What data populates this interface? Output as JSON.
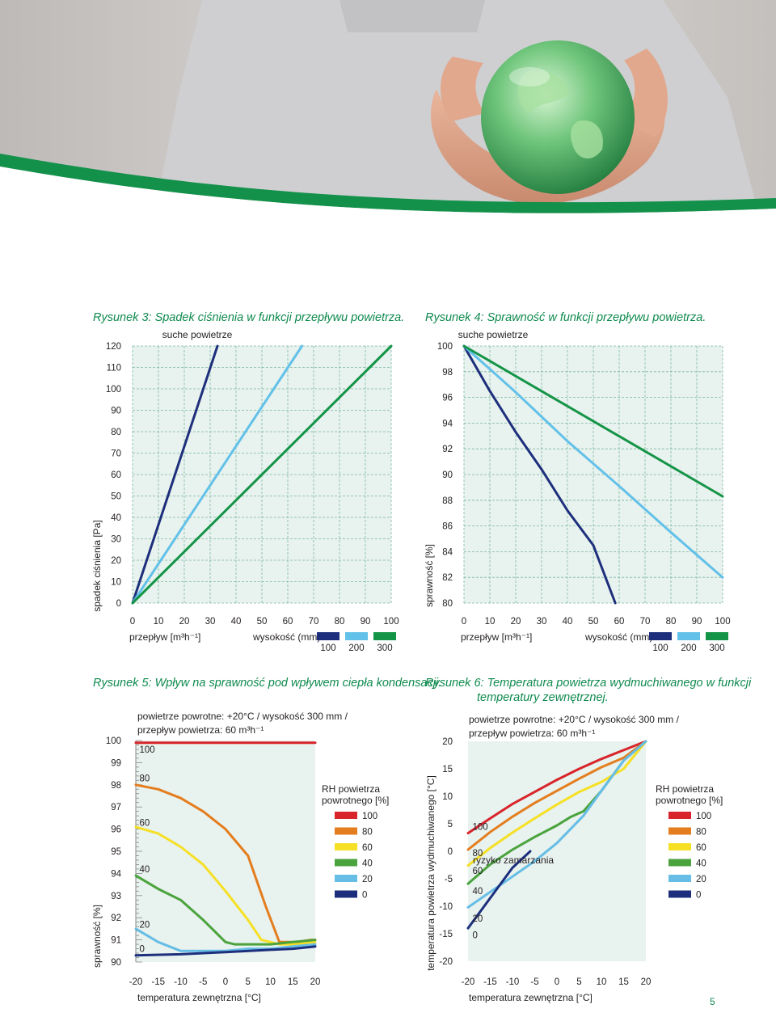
{
  "page_number": "5",
  "legend_colors": {
    "h100": "#1d2f7c",
    "h200": "#62c1e9",
    "h300": "#149447",
    "rh100": "#d8242b",
    "rh80": "#e47d1e",
    "rh60": "#f6e025",
    "rh40": "#4aa33c",
    "rh20": "#66bde6",
    "rh0": "#1d2f7c"
  },
  "chart_data": [
    {
      "id": "fig3",
      "type": "line",
      "title": "Rysunek 3: Spadek ciśnienia w funkcji przepływu powietrza.",
      "subtitle": "suche powietrze",
      "xlabel": "przepływ [m³h⁻¹]",
      "ylabel": "spadek ciśnienia [Pa]",
      "xlim": [
        0,
        100
      ],
      "ylim": [
        0,
        120
      ],
      "xticks": [
        "0",
        "10",
        "20",
        "30",
        "40",
        "50",
        "60",
        "70",
        "80",
        "90",
        "100"
      ],
      "yticks": [
        "0",
        "10",
        "20",
        "30",
        "40",
        "50",
        "60",
        "70",
        "80",
        "90",
        "100",
        "110",
        "120"
      ],
      "grid": true,
      "legend_title": "wysokość (mm)",
      "legend_position": "bottom",
      "series": [
        {
          "name": "100",
          "color": "#1d2f7c",
          "x": [
            0,
            32.8
          ],
          "y": [
            0,
            120
          ]
        },
        {
          "name": "200",
          "color": "#62c1e9",
          "x": [
            0,
            65.5
          ],
          "y": [
            0,
            120
          ]
        },
        {
          "name": "300",
          "color": "#149447",
          "x": [
            0,
            100
          ],
          "y": [
            0,
            120
          ]
        }
      ]
    },
    {
      "id": "fig4",
      "type": "line",
      "title": "Rysunek 4: Sprawność w funkcji przepływu powietrza.",
      "subtitle": "suche powietrze",
      "xlabel": "przepływ [m³h⁻¹]",
      "ylabel": "sprawność [%]",
      "xlim": [
        0,
        100
      ],
      "ylim": [
        80,
        100
      ],
      "xticks": [
        "0",
        "10",
        "20",
        "30",
        "40",
        "50",
        "60",
        "70",
        "80",
        "90",
        "100"
      ],
      "yticks": [
        "80",
        "82",
        "84",
        "86",
        "88",
        "90",
        "92",
        "94",
        "96",
        "98",
        "100"
      ],
      "grid": true,
      "legend_title": "wysokość (mm)",
      "legend_position": "bottom",
      "series": [
        {
          "name": "100",
          "color": "#1d2f7c",
          "x": [
            0,
            10,
            20,
            30,
            40,
            50,
            58.5
          ],
          "y": [
            100,
            96.5,
            93.3,
            90.4,
            87.2,
            84.5,
            80
          ]
        },
        {
          "name": "200",
          "color": "#62c1e9",
          "x": [
            0,
            20,
            40,
            60,
            80,
            100
          ],
          "y": [
            100,
            96.4,
            92.6,
            89.1,
            85.5,
            82
          ]
        },
        {
          "name": "300",
          "color": "#149447",
          "x": [
            0,
            100
          ],
          "y": [
            100,
            88.3
          ]
        }
      ]
    },
    {
      "id": "fig5",
      "type": "line",
      "title": "Rysunek 5: Wpływ na sprawność pod wpływem ciepła kondensacji.",
      "subtitle_lines": [
        "powietrze powrotne: +20°C / wysokość 300 mm /",
        "przepływ powietrza: 60 m³h⁻¹"
      ],
      "xlabel": "temperatura zewnętrzna [°C]",
      "ylabel": "sprawność [%]",
      "xlim": [
        -20,
        20
      ],
      "ylim": [
        90,
        100
      ],
      "xticks": [
        "-20",
        "-15",
        "-10",
        "-5",
        "0",
        "5",
        "10",
        "15",
        "20"
      ],
      "yticks": [
        "90",
        "91",
        "92",
        "93",
        "94",
        "95",
        "96",
        "97",
        "98",
        "99",
        "100"
      ],
      "grid": false,
      "legend_title": "RH powietrza powrotnego [%]",
      "legend_position": "right",
      "series": [
        {
          "name": "100",
          "color": "#d8242b",
          "x": [
            -20,
            20
          ],
          "y": [
            99.9,
            99.9
          ]
        },
        {
          "name": "80",
          "color": "#e47d1e",
          "x": [
            -20,
            -15,
            -10,
            -5,
            0,
            5,
            9,
            12,
            14,
            16,
            19,
            20
          ],
          "y": [
            98.0,
            97.8,
            97.4,
            96.8,
            96.0,
            94.8,
            92.5,
            90.9,
            90.9,
            90.9,
            91.0,
            91.0
          ]
        },
        {
          "name": "60",
          "color": "#f6e025",
          "x": [
            -20,
            -15,
            -10,
            -5,
            0,
            5,
            8,
            12,
            16,
            20
          ],
          "y": [
            96.1,
            95.8,
            95.2,
            94.4,
            93.2,
            91.9,
            91.0,
            90.8,
            90.8,
            90.9
          ]
        },
        {
          "name": "40",
          "color": "#4aa33c",
          "x": [
            -20,
            -15,
            -10,
            -5,
            0,
            2,
            5,
            10,
            15,
            20
          ],
          "y": [
            93.9,
            93.3,
            92.8,
            91.9,
            90.9,
            90.8,
            90.8,
            90.8,
            90.9,
            91.0
          ]
        },
        {
          "name": "20",
          "color": "#66bde6",
          "x": [
            -20,
            -15,
            -10,
            -5,
            0,
            5,
            10,
            15,
            20
          ],
          "y": [
            91.5,
            90.9,
            90.5,
            90.5,
            90.5,
            90.6,
            90.6,
            90.7,
            90.8
          ]
        },
        {
          "name": "0",
          "color": "#1d2f7c",
          "x": [
            -20,
            -10,
            0,
            10,
            15,
            20
          ],
          "y": [
            90.3,
            90.35,
            90.45,
            90.55,
            90.6,
            90.7
          ]
        }
      ],
      "inline_labels": [
        {
          "text": "100",
          "x": -19.2,
          "y": 99.6
        },
        {
          "text": "80",
          "x": -19.2,
          "y": 98.3
        },
        {
          "text": "60",
          "x": -19.2,
          "y": 96.3
        },
        {
          "text": "40",
          "x": -19.2,
          "y": 94.2
        },
        {
          "text": "20",
          "x": -19.2,
          "y": 91.7
        },
        {
          "text": "0",
          "x": -19.2,
          "y": 90.6
        }
      ]
    },
    {
      "id": "fig6",
      "type": "line",
      "title": "Rysunek 6: Temperatura powietrza wydmuchiwanego w funkcji",
      "title_line2": "temperatury zewnętrznej.",
      "subtitle_lines": [
        "powietrze powrotne: +20°C / wysokość 300 mm /",
        "przepływ powietrza: 60 m³h⁻¹"
      ],
      "xlabel": "temperatura zewnętrzna [°C]",
      "ylabel": "temperatura powietrza wydmuchiwanego [°C]",
      "xlim": [
        -20,
        20
      ],
      "ylim": [
        -20,
        20
      ],
      "xticks": [
        "-20",
        "-15",
        "-10",
        "-5",
        "0",
        "5",
        "10",
        "15",
        "20"
      ],
      "yticks": [
        "-20",
        "-15",
        "-10",
        "-5",
        "0",
        "5",
        "10",
        "15",
        "20"
      ],
      "grid": false,
      "legend_title": "RH powietrza powrotnego [%]",
      "legend_position": "right",
      "annotation": "ryzyko zamarzania",
      "series": [
        {
          "name": "100",
          "color": "#d8242b",
          "x": [
            -20,
            -15,
            -10,
            -5,
            0,
            5,
            10,
            15,
            20
          ],
          "y": [
            3.3,
            6.0,
            8.6,
            10.8,
            13.0,
            15.0,
            16.8,
            18.4,
            20
          ]
        },
        {
          "name": "80",
          "color": "#e47d1e",
          "x": [
            -20,
            -15,
            -10,
            -5,
            0,
            5,
            10,
            15,
            20
          ],
          "y": [
            0.3,
            3.5,
            6.3,
            8.8,
            11.0,
            13.2,
            15.3,
            17.0,
            20
          ]
        },
        {
          "name": "60",
          "color": "#f6e025",
          "x": [
            -20,
            -15,
            -10,
            -5,
            0,
            5,
            10,
            15,
            20
          ],
          "y": [
            -2.6,
            0.6,
            3.4,
            6.0,
            8.5,
            10.8,
            12.6,
            15.0,
            20
          ]
        },
        {
          "name": "40",
          "color": "#4aa33c",
          "x": [
            -20,
            -15,
            -10,
            -5,
            0,
            3,
            6,
            10,
            15,
            20
          ],
          "y": [
            -5.9,
            -2.4,
            0.3,
            2.6,
            4.7,
            6.2,
            7.3,
            11.0,
            16.5,
            20
          ]
        },
        {
          "name": "20",
          "color": "#66bde6",
          "x": [
            -20,
            -15,
            -10,
            -5,
            0,
            3,
            6,
            10,
            15,
            20
          ],
          "y": [
            -10.2,
            -7.4,
            -4.6,
            -1.8,
            1.5,
            4.0,
            6.5,
            11.0,
            16.5,
            20
          ]
        },
        {
          "name": "0",
          "color": "#1d2f7c",
          "x": [
            -20,
            -10,
            -6
          ],
          "y": [
            -14.0,
            -3.0,
            0.0
          ]
        }
      ],
      "inline_labels": [
        {
          "text": "100",
          "x": -19.0,
          "y": 4.5
        },
        {
          "text": "80",
          "x": -19.0,
          "y": -0.3
        },
        {
          "text": "60",
          "x": -19.0,
          "y": -3.5
        },
        {
          "text": "40",
          "x": -19.0,
          "y": -7.2
        },
        {
          "text": "20",
          "x": -19.0,
          "y": -12.2
        },
        {
          "text": "0",
          "x": -19.0,
          "y": -15.2
        }
      ]
    }
  ]
}
